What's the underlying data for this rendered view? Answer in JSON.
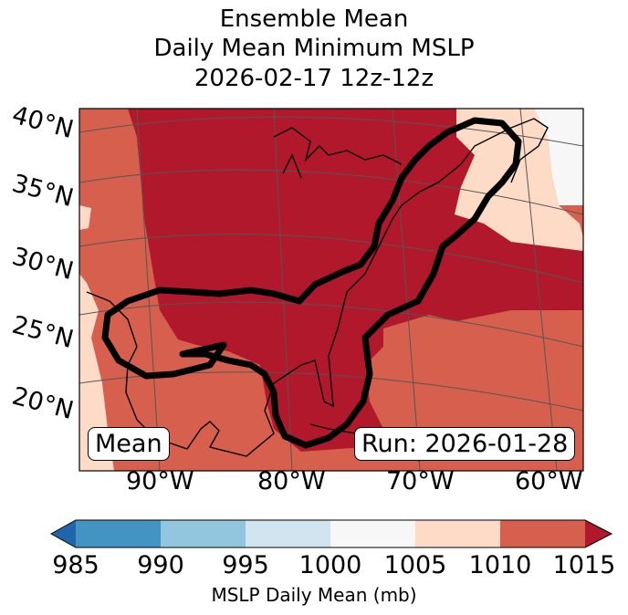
{
  "title": {
    "line1": "Ensemble Mean",
    "line2": "Daily Mean Minimum MSLP",
    "line3": "2026-02-17 12z-12z"
  },
  "map": {
    "lat_labels": [
      "40°N",
      "35°N",
      "30°N",
      "25°N",
      "20°N"
    ],
    "lon_labels": [
      "90°W",
      "80°W",
      "70°W",
      "60°W"
    ],
    "mean_label": "Mean",
    "run_label": "Run: 2026-01-28"
  },
  "colorbar": {
    "label": "MSLP Daily Mean (mb)",
    "ticks": [
      "985",
      "990",
      "995",
      "1000",
      "1005",
      "1010",
      "1015"
    ],
    "colors": {
      "below": "#2166ac",
      "985_990": "#4393c3",
      "990_995": "#92c5de",
      "995_1000": "#d1e5f0",
      "1000_1005": "#f7f7f7",
      "1005_1010": "#fddbc7",
      "1010_1015": "#d6604d",
      "above": "#b2182b"
    }
  }
}
